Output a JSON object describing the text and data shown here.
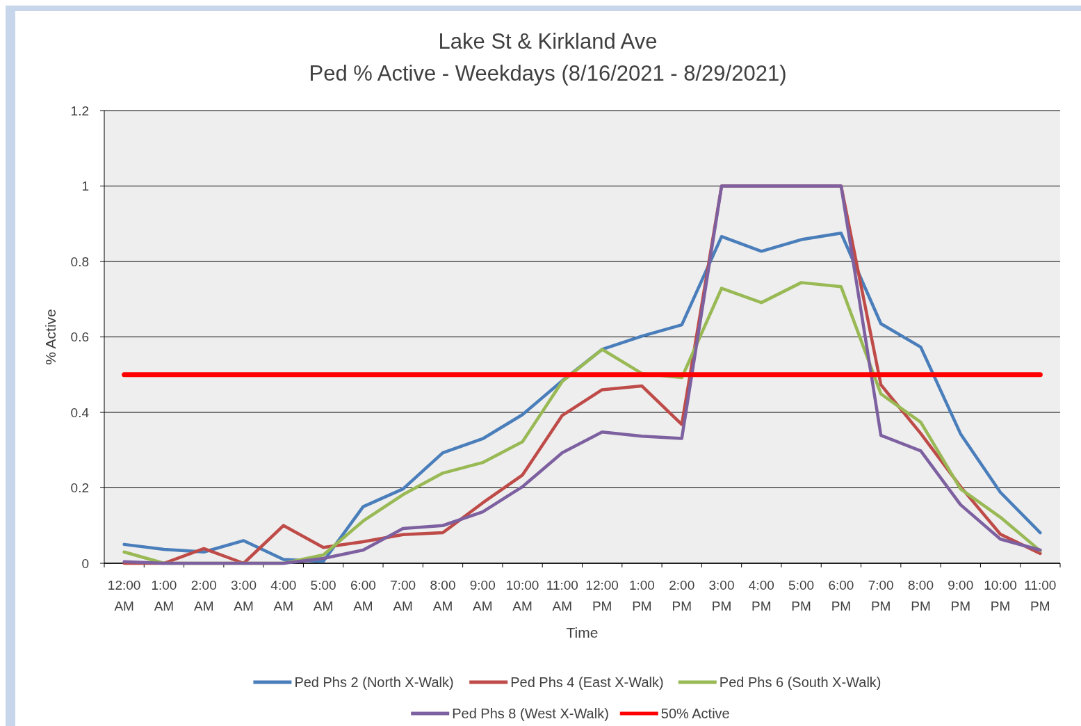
{
  "chart_data": {
    "type": "line",
    "title": "Lake St & Kirkland Ave",
    "subtitle": "Ped % Active - Weekdays (8/16/2021 - 8/29/2021)",
    "xlabel": "Time",
    "ylabel": "% Active",
    "categories": [
      "12:00 AM",
      "1:00 AM",
      "2:00 AM",
      "3:00 AM",
      "4:00 AM",
      "5:00 AM",
      "6:00 AM",
      "7:00 AM",
      "8:00 AM",
      "9:00 AM",
      "10:00 AM",
      "11:00 AM",
      "12:00 PM",
      "1:00 PM",
      "2:00 PM",
      "3:00 PM",
      "4:00 PM",
      "5:00 PM",
      "6:00 PM",
      "7:00 PM",
      "8:00 PM",
      "9:00 PM",
      "10:00 PM",
      "11:00 PM"
    ],
    "series": [
      {
        "name": "Ped Phs 2 (North X-Walk)",
        "color": "#4a7ebb",
        "values": [
          0.05,
          0.037,
          0.03,
          0.06,
          0.01,
          0.005,
          0.15,
          0.197,
          0.293,
          0.33,
          0.394,
          0.484,
          0.567,
          0.602,
          0.632,
          0.866,
          0.827,
          0.858,
          0.875,
          0.635,
          0.573,
          0.343,
          0.188,
          0.081
        ]
      },
      {
        "name": "Ped Phs 4 (East X-Walk)",
        "color": "#be4b48",
        "values": [
          0,
          0,
          0.039,
          0,
          0.1,
          0.042,
          0.057,
          0.076,
          0.081,
          0.16,
          0.234,
          0.392,
          0.46,
          0.47,
          0.368,
          1,
          1,
          1,
          1,
          0.473,
          0.344,
          0.203,
          0.077,
          0.026
        ]
      },
      {
        "name": "Ped Phs 6 (South X-Walk)",
        "color": "#98b954",
        "values": [
          0.03,
          0,
          0,
          0,
          0,
          0.022,
          0.112,
          0.182,
          0.239,
          0.267,
          0.322,
          0.482,
          0.567,
          0.503,
          0.492,
          0.729,
          0.691,
          0.744,
          0.733,
          0.449,
          0.374,
          0.197,
          0.122,
          0.033
        ]
      },
      {
        "name": "Ped Phs 8 (West X-Walk)",
        "color": "#7d60a0",
        "values": [
          0.004,
          0,
          0,
          0,
          0,
          0.013,
          0.035,
          0.092,
          0.1,
          0.136,
          0.203,
          0.293,
          0.348,
          0.337,
          0.331,
          1,
          1,
          1,
          1,
          0.339,
          0.298,
          0.155,
          0.064,
          0.035
        ]
      },
      {
        "name": "50% Active",
        "color": "#ff0000",
        "values": [
          0.5,
          0.5,
          0.5,
          0.5,
          0.5,
          0.5,
          0.5,
          0.5,
          0.5,
          0.5,
          0.5,
          0.5,
          0.5,
          0.5,
          0.5,
          0.5,
          0.5,
          0.5,
          0.5,
          0.5,
          0.5,
          0.5,
          0.5,
          0.5
        ]
      }
    ],
    "ylim": [
      0,
      1.2
    ],
    "yticks": [
      0,
      0.2,
      0.4,
      0.6,
      0.8,
      1,
      1.2
    ],
    "grid": "y",
    "legend": "bottom",
    "line_style": "solid",
    "marker": "none"
  }
}
